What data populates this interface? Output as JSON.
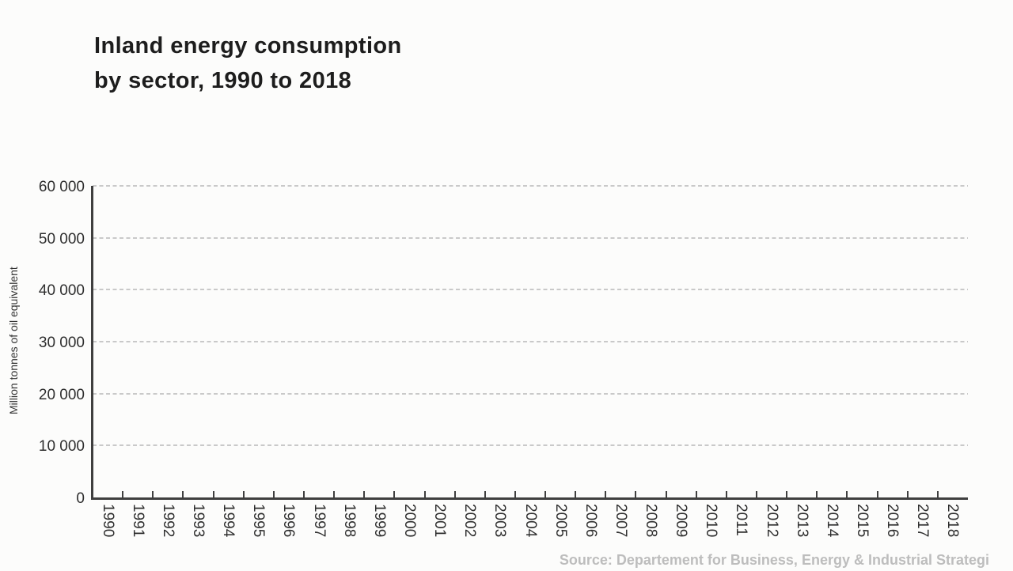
{
  "title": {
    "line1": "Inland energy consumption",
    "line2": "by sector, 1990 to 2018"
  },
  "source": "Source: Departement for Business, Energy & Industrial Strategi",
  "colors": {
    "background": "#fcfcfb",
    "title_text": "#1d1d1d",
    "axis_line": "#3f3f3f",
    "tick_label_text": "#2e2e2e",
    "gridline": "#c9c9c9",
    "y_axis_title_text": "#333333",
    "source_text": "#bdbdbd"
  },
  "chart_data": {
    "type": "bar",
    "title": "Inland energy consumption by sector, 1990 to 2018",
    "categories": [
      "1990",
      "1991",
      "1992",
      "1993",
      "1994",
      "1995",
      "1996",
      "1997",
      "1998",
      "1999",
      "2000",
      "2001",
      "2002",
      "2003",
      "2004",
      "2005",
      "2006",
      "2007",
      "2008",
      "2009",
      "2010",
      "2011",
      "2012",
      "2013",
      "2014",
      "2015",
      "2016",
      "2017",
      "2018"
    ],
    "series": [],
    "xlabel": "",
    "ylabel": "Million tonnes of oil equivalent",
    "ylim": [
      0,
      60000
    ],
    "ytick_values": [
      0,
      10000,
      20000,
      30000,
      40000,
      50000,
      60000
    ],
    "ytick_labels": [
      "0",
      "10 000",
      "20 000",
      "30 000",
      "40 000",
      "50 000",
      "60 000"
    ],
    "grid": "horizontal-dashed",
    "legend_position": "none",
    "source": "Source: Departement for Business, Energy & Industrial Strategi"
  }
}
